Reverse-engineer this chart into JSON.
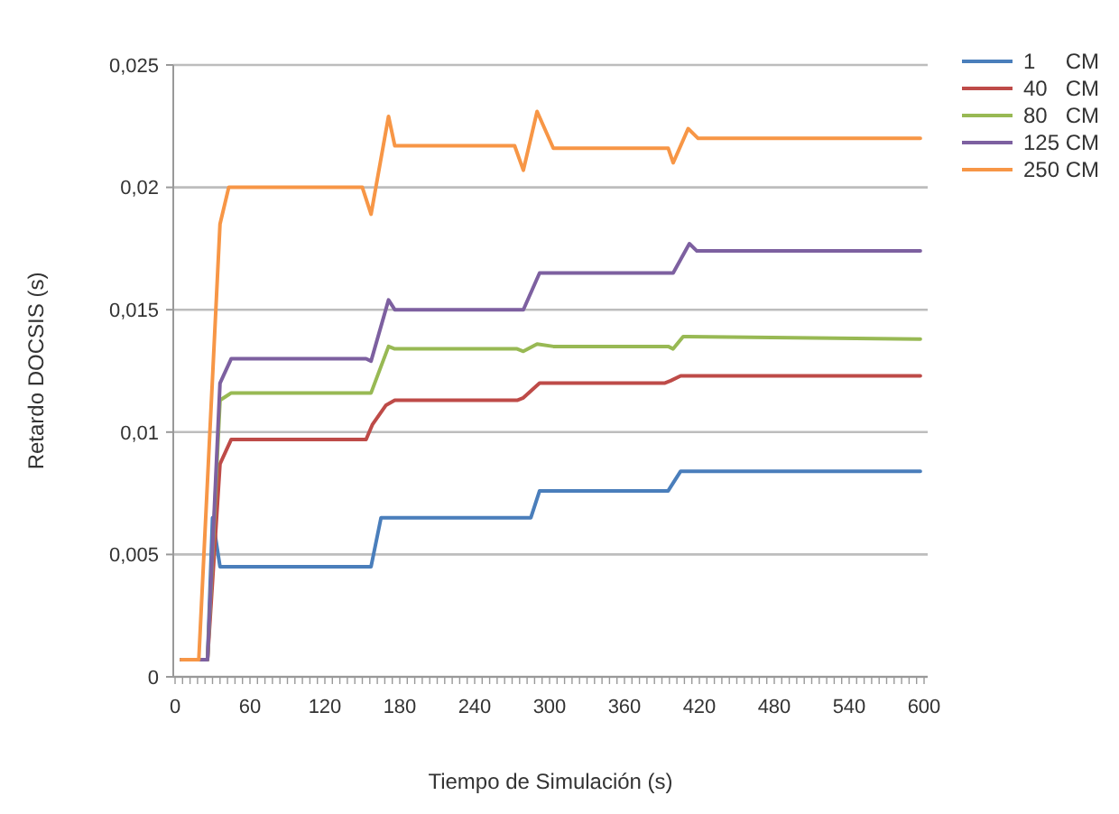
{
  "chart_data": {
    "type": "line",
    "xlabel": "Tiempo de Simulación (s)",
    "ylabel": "Retardo DOCSIS (s)",
    "xlim": [
      0,
      600
    ],
    "xticks": [
      0,
      60,
      120,
      180,
      240,
      300,
      360,
      420,
      480,
      540,
      600
    ],
    "ylim": [
      0,
      0.025
    ],
    "yticks": [
      {
        "value": 0,
        "label": "0"
      },
      {
        "value": 0.005,
        "label": "0,005"
      },
      {
        "value": 0.01,
        "label": "0,01"
      },
      {
        "value": 0.015,
        "label": "0,015"
      },
      {
        "value": 0.02,
        "label": "0,02"
      },
      {
        "value": 0.025,
        "label": "0,025"
      }
    ],
    "grid": "y",
    "legend": "top right",
    "marker": "none",
    "line_style": "solid",
    "series": [
      {
        "name": "1     CM",
        "color": "#4a7ebb",
        "x": [
          5,
          26,
          30,
          36,
          157,
          165,
          285,
          292,
          395,
          405,
          597
        ],
        "values": [
          0.0007,
          0.0007,
          0.0065,
          0.0045,
          0.0045,
          0.0065,
          0.0065,
          0.0076,
          0.0076,
          0.0084,
          0.0084
        ]
      },
      {
        "name": "40   CM",
        "color": "#be4b48",
        "x": [
          5,
          26,
          36,
          45,
          153,
          158,
          169,
          176,
          274,
          279,
          292,
          392,
          397,
          405,
          597
        ],
        "values": [
          0.0007,
          0.0007,
          0.0087,
          0.0097,
          0.0097,
          0.0103,
          0.0111,
          0.0113,
          0.0113,
          0.0114,
          0.012,
          0.012,
          0.0121,
          0.0123,
          0.0123
        ]
      },
      {
        "name": "80   CM",
        "color": "#98b954",
        "x": [
          5,
          26,
          36,
          45,
          157,
          171,
          176,
          274,
          279,
          290,
          303,
          395,
          399,
          407,
          597
        ],
        "values": [
          0.0007,
          0.0007,
          0.0113,
          0.0116,
          0.0116,
          0.0135,
          0.0134,
          0.0134,
          0.0133,
          0.0136,
          0.0135,
          0.0135,
          0.0134,
          0.0139,
          0.0138
        ]
      },
      {
        "name": "125 CM",
        "color": "#7d60a0",
        "x": [
          5,
          26,
          36,
          45,
          153,
          157,
          171,
          176,
          279,
          292,
          399,
          412,
          418,
          597
        ],
        "values": [
          0.0007,
          0.0007,
          0.012,
          0.013,
          0.013,
          0.0129,
          0.0154,
          0.015,
          0.015,
          0.0165,
          0.0165,
          0.0177,
          0.0174,
          0.0174
        ]
      },
      {
        "name": "250 CM",
        "color": "#f79646",
        "x": [
          5,
          19,
          36,
          43,
          150,
          157,
          171,
          176,
          272,
          279,
          290,
          303,
          395,
          399,
          411,
          419,
          597
        ],
        "values": [
          0.0007,
          0.0007,
          0.0185,
          0.02,
          0.02,
          0.0189,
          0.0229,
          0.0217,
          0.0217,
          0.0207,
          0.0231,
          0.0216,
          0.0216,
          0.021,
          0.0224,
          0.022,
          0.022
        ]
      }
    ]
  }
}
